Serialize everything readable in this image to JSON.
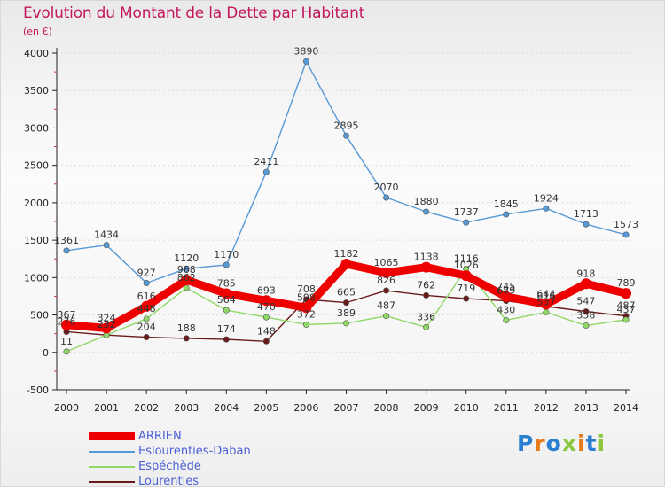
{
  "title": "Evolution du Montant de la Dette par Habitant",
  "subtitle": "(en €)",
  "logo": {
    "text": "Proxiti",
    "colors": [
      "#2a7fd0",
      "#e87b1e",
      "#2a7fd0",
      "#8cc63f",
      "#e87b1e",
      "#2a7fd0",
      "#8cc63f"
    ]
  },
  "chart_data": {
    "type": "line",
    "title": "Evolution du Montant de la Dette par Habitant",
    "ylabel": "(en €)",
    "xlabel": "",
    "x": [
      "2000",
      "2001",
      "2002",
      "2003",
      "2004",
      "2005",
      "2006",
      "2007",
      "2008",
      "2009",
      "2010",
      "2011",
      "2012",
      "2013",
      "2014"
    ],
    "ylim": [
      -500,
      4000
    ],
    "yticks": [
      "-500",
      "0",
      "500",
      "1000",
      "1500",
      "2000",
      "2500",
      "3000",
      "3500",
      "4000"
    ],
    "series": [
      {
        "name": "ARRIEN",
        "color": "#ee0000",
        "values": [
          367,
          324,
          616,
          968,
          785,
          693,
          598,
          1182,
          1065,
          1138,
          1026,
          745,
          644,
          918,
          789
        ],
        "labels": [
          "367",
          "324",
          "616",
          "968",
          "785",
          "693",
          "598",
          "1182",
          "1065",
          "1138",
          "1026",
          "745",
          "644",
          "918",
          "789"
        ]
      },
      {
        "name": "Eslourenties-Daban",
        "color": "#5599d6",
        "values": [
          1361,
          1434,
          927,
          1120,
          1170,
          2411,
          3890,
          2895,
          2070,
          1880,
          1737,
          1845,
          1924,
          1713,
          1573
        ],
        "labels": [
          "1361",
          "1434",
          "927",
          "1120",
          "1170",
          "2411",
          "3890",
          "2895",
          "2070",
          "1880",
          "1737",
          "1845",
          "1924",
          "1713",
          "1573"
        ]
      },
      {
        "name": "Espéchède",
        "color": "#8fd966",
        "values": [
          11,
          232,
          448,
          862,
          564,
          470,
          372,
          389,
          487,
          336,
          1116,
          430,
          537,
          358,
          437
        ],
        "labels": [
          "11",
          "232",
          "448",
          "862",
          "564",
          "470",
          "372",
          "389",
          "487",
          "336",
          "1116",
          "430",
          "537",
          "358",
          "437"
        ]
      },
      {
        "name": "Lourenties",
        "color": "#6b1a1a",
        "values": [
          276,
          232,
          204,
          188,
          174,
          148,
          708,
          665,
          826,
          762,
          719,
          689,
          616,
          547,
          487
        ],
        "labels": [
          "276",
          "232",
          "204",
          "188",
          "174",
          "148",
          "708",
          "665",
          "826",
          "762",
          "719",
          "689",
          "616",
          "547",
          "487"
        ]
      }
    ]
  }
}
